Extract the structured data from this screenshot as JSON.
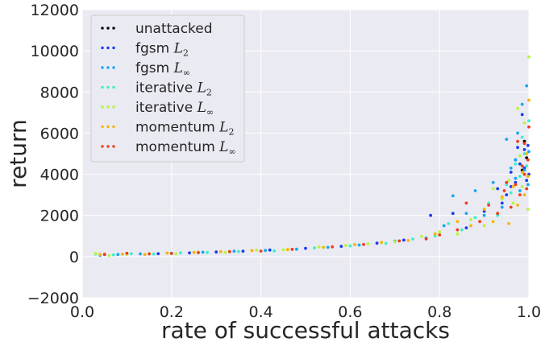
{
  "chart_data": {
    "type": "scatter",
    "title": "",
    "xlabel": "rate of successful attacks",
    "ylabel": "return",
    "xlim": [
      0.0,
      1.0
    ],
    "ylim": [
      -2000,
      12000
    ],
    "xticks": [
      "0.0",
      "0.2",
      "0.4",
      "0.6",
      "0.8",
      "1.0"
    ],
    "yticks": [
      "−2000",
      "0",
      "2000",
      "4000",
      "6000",
      "8000",
      "10000",
      "12000"
    ],
    "grid": true,
    "legend_position": "top-left",
    "series": [
      {
        "name": "unattacked",
        "legend_base": "unattacked",
        "legend_math": "",
        "legend_sub": "",
        "color": "#000000",
        "points": [
          [
            0.99,
            5600
          ],
          [
            0.995,
            4800
          ],
          [
            0.985,
            4200
          ]
        ]
      },
      {
        "name": "fgsm L2",
        "legend_base": "fgsm ",
        "legend_math": "L",
        "legend_sub": "2",
        "color": "#1a3cf0",
        "points": [
          [
            0.05,
            100
          ],
          [
            0.1,
            130
          ],
          [
            0.17,
            140
          ],
          [
            0.24,
            180
          ],
          [
            0.3,
            220
          ],
          [
            0.36,
            260
          ],
          [
            0.42,
            320
          ],
          [
            0.5,
            400
          ],
          [
            0.58,
            500
          ],
          [
            0.66,
            650
          ],
          [
            0.72,
            800
          ],
          [
            0.78,
            2000
          ],
          [
            0.83,
            2100
          ],
          [
            0.86,
            1400
          ],
          [
            0.9,
            2200
          ],
          [
            0.93,
            3300
          ],
          [
            0.95,
            3000
          ],
          [
            0.96,
            4100
          ],
          [
            0.97,
            3600
          ],
          [
            0.975,
            5300
          ],
          [
            0.98,
            4500
          ],
          [
            0.985,
            6900
          ],
          [
            0.99,
            4300
          ],
          [
            0.995,
            3700
          ],
          [
            0.998,
            5400
          ],
          [
            1.0,
            4000
          ],
          [
            0.99,
            5200
          ],
          [
            0.97,
            4700
          ],
          [
            0.96,
            3400
          ],
          [
            0.94,
            2600
          ]
        ]
      },
      {
        "name": "fgsm L∞",
        "legend_base": "fgsm ",
        "legend_math": "L",
        "legend_sub": "∞",
        "color": "#15a6f5",
        "points": [
          [
            0.04,
            60
          ],
          [
            0.08,
            100
          ],
          [
            0.13,
            130
          ],
          [
            0.2,
            160
          ],
          [
            0.27,
            210
          ],
          [
            0.34,
            260
          ],
          [
            0.41,
            300
          ],
          [
            0.48,
            360
          ],
          [
            0.55,
            450
          ],
          [
            0.62,
            560
          ],
          [
            0.7,
            750
          ],
          [
            0.77,
            900
          ],
          [
            0.81,
            1500
          ],
          [
            0.83,
            2950
          ],
          [
            0.86,
            2100
          ],
          [
            0.88,
            3200
          ],
          [
            0.9,
            2000
          ],
          [
            0.92,
            3600
          ],
          [
            0.94,
            2400
          ],
          [
            0.95,
            5700
          ],
          [
            0.96,
            4300
          ],
          [
            0.97,
            3800
          ],
          [
            0.975,
            6000
          ],
          [
            0.98,
            3200
          ],
          [
            0.985,
            7400
          ],
          [
            0.99,
            4200
          ],
          [
            0.995,
            8300
          ],
          [
            1.0,
            5100
          ],
          [
            0.998,
            3500
          ],
          [
            0.97,
            4700
          ]
        ]
      },
      {
        "name": "iterative L2",
        "legend_base": "iterative ",
        "legend_math": "L",
        "legend_sub": "2",
        "color": "#3cf0c4",
        "points": [
          [
            0.03,
            120
          ],
          [
            0.07,
            80
          ],
          [
            0.11,
            140
          ],
          [
            0.16,
            120
          ],
          [
            0.22,
            180
          ],
          [
            0.28,
            200
          ],
          [
            0.35,
            250
          ],
          [
            0.43,
            280
          ],
          [
            0.52,
            420
          ],
          [
            0.6,
            520
          ],
          [
            0.68,
            640
          ],
          [
            0.74,
            850
          ],
          [
            0.79,
            1000
          ],
          [
            0.82,
            1600
          ],
          [
            0.85,
            1300
          ],
          [
            0.88,
            1900
          ],
          [
            0.91,
            2600
          ],
          [
            0.93,
            2000
          ],
          [
            0.95,
            3500
          ],
          [
            0.96,
            3100
          ],
          [
            0.97,
            4500
          ],
          [
            0.98,
            3900
          ],
          [
            0.99,
            5000
          ],
          [
            1.0,
            6600
          ],
          [
            0.995,
            4400
          ],
          [
            0.985,
            5800
          ]
        ]
      },
      {
        "name": "iterative L∞",
        "legend_base": "iterative ",
        "legend_math": "L",
        "legend_sub": "∞",
        "color": "#b6f53c",
        "points": [
          [
            0.03,
            150
          ],
          [
            0.06,
            50
          ],
          [
            0.1,
            110
          ],
          [
            0.15,
            150
          ],
          [
            0.21,
            130
          ],
          [
            0.26,
            220
          ],
          [
            0.32,
            200
          ],
          [
            0.39,
            310
          ],
          [
            0.45,
            330
          ],
          [
            0.53,
            470
          ],
          [
            0.59,
            540
          ],
          [
            0.64,
            620
          ],
          [
            0.7,
            720
          ],
          [
            0.76,
            980
          ],
          [
            0.8,
            1200
          ],
          [
            0.84,
            1100
          ],
          [
            0.87,
            1800
          ],
          [
            0.9,
            1500
          ],
          [
            0.92,
            3300
          ],
          [
            0.94,
            2800
          ],
          [
            0.955,
            3700
          ],
          [
            0.965,
            2600
          ],
          [
            0.975,
            7200
          ],
          [
            0.985,
            3400
          ],
          [
            0.99,
            6500
          ],
          [
            1.0,
            9700
          ],
          [
            0.998,
            2300
          ],
          [
            0.98,
            4900
          ]
        ]
      },
      {
        "name": "momentum L2",
        "legend_base": "momentum ",
        "legend_math": "L",
        "legend_sub": "2",
        "color": "#f5b50a",
        "points": [
          [
            0.04,
            100
          ],
          [
            0.09,
            120
          ],
          [
            0.14,
            100
          ],
          [
            0.19,
            170
          ],
          [
            0.25,
            200
          ],
          [
            0.31,
            240
          ],
          [
            0.38,
            290
          ],
          [
            0.46,
            340
          ],
          [
            0.54,
            450
          ],
          [
            0.61,
            580
          ],
          [
            0.67,
            690
          ],
          [
            0.73,
            780
          ],
          [
            0.79,
            1100
          ],
          [
            0.84,
            1700
          ],
          [
            0.87,
            1500
          ],
          [
            0.9,
            2300
          ],
          [
            0.92,
            1700
          ],
          [
            0.94,
            2900
          ],
          [
            0.955,
            1600
          ],
          [
            0.965,
            3400
          ],
          [
            0.975,
            2500
          ],
          [
            0.985,
            4100
          ],
          [
            0.99,
            3000
          ],
          [
            0.995,
            5000
          ],
          [
            1.0,
            7600
          ],
          [
            0.998,
            3900
          ]
        ]
      },
      {
        "name": "momentum L∞",
        "legend_base": "momentum ",
        "legend_math": "L",
        "legend_sub": "∞",
        "color": "#f03c1a",
        "points": [
          [
            0.05,
            110
          ],
          [
            0.1,
            160
          ],
          [
            0.15,
            130
          ],
          [
            0.2,
            150
          ],
          [
            0.26,
            190
          ],
          [
            0.33,
            240
          ],
          [
            0.4,
            270
          ],
          [
            0.47,
            350
          ],
          [
            0.56,
            470
          ],
          [
            0.63,
            590
          ],
          [
            0.71,
            760
          ],
          [
            0.77,
            860
          ],
          [
            0.8,
            1050
          ],
          [
            0.84,
            1300
          ],
          [
            0.86,
            2600
          ],
          [
            0.89,
            1700
          ],
          [
            0.91,
            2500
          ],
          [
            0.93,
            2100
          ],
          [
            0.945,
            3200
          ],
          [
            0.96,
            2400
          ],
          [
            0.97,
            3500
          ],
          [
            0.975,
            5600
          ],
          [
            0.98,
            3000
          ],
          [
            0.985,
            4400
          ],
          [
            0.99,
            5500
          ],
          [
            0.995,
            3300
          ],
          [
            1.0,
            6300
          ],
          [
            0.998,
            4700
          ],
          [
            0.99,
            4000
          ],
          [
            0.95,
            3600
          ]
        ]
      }
    ]
  }
}
